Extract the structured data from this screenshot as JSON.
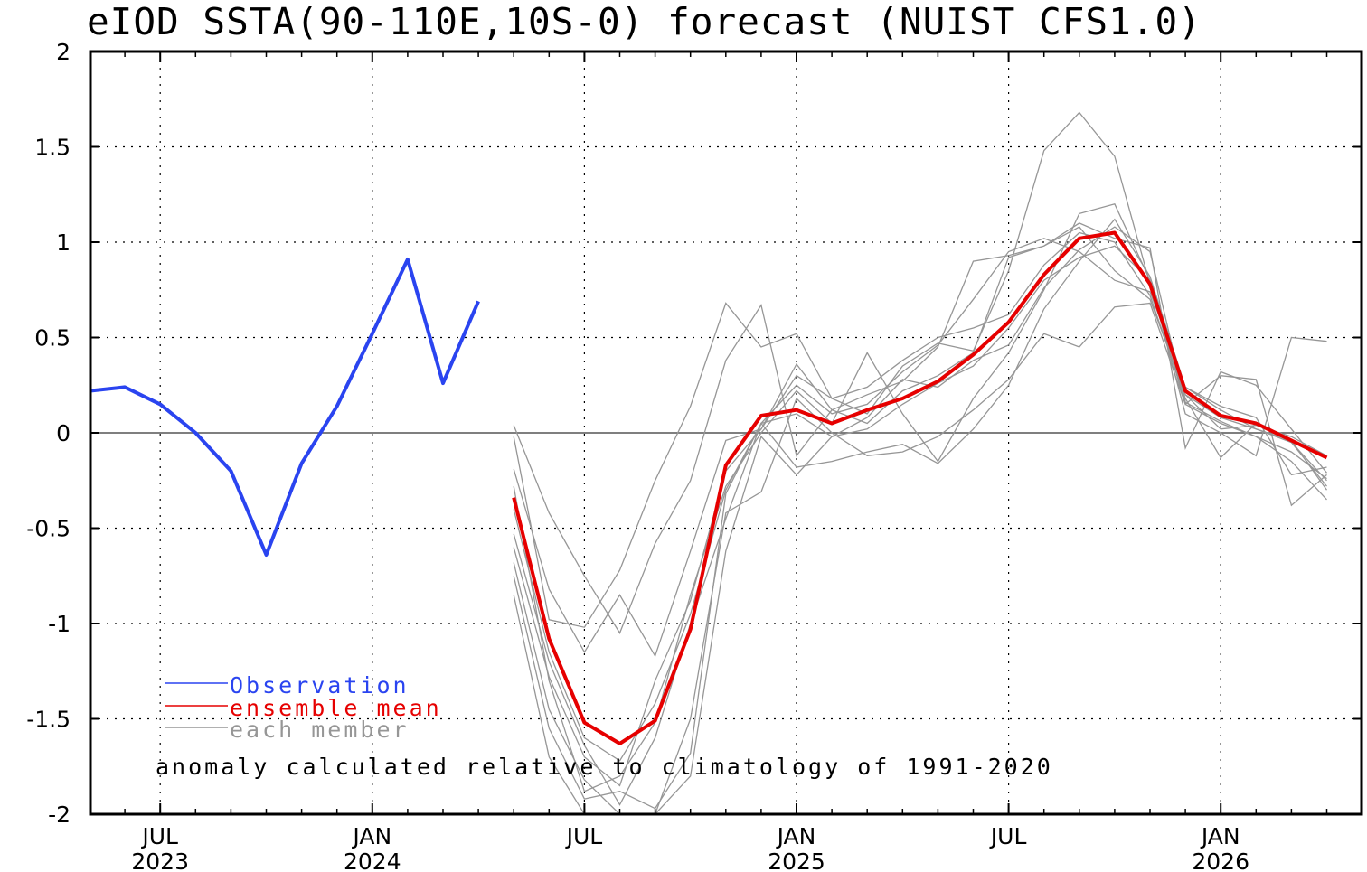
{
  "chart_data": {
    "type": "line",
    "title": "eIOD SSTA(90-110E,10S-0) forecast (NUIST CFS1.0)",
    "note": "anomaly calculated relative to climatology of 1991-2020",
    "ylim": [
      -2,
      2
    ],
    "y_ticks": [
      "2",
      "1.5",
      "1",
      "0.5",
      "0",
      "-0.5",
      "-1",
      "-1.5",
      "-2"
    ],
    "x_ticks": [
      {
        "month": "JUL",
        "year": "2023"
      },
      {
        "month": "JAN",
        "year": "2024"
      },
      {
        "month": "JUL",
        "year": ""
      },
      {
        "month": "JAN",
        "year": "2025"
      },
      {
        "month": "JUL",
        "year": ""
      },
      {
        "month": "JAN",
        "year": "2026"
      }
    ],
    "grid": "dotted",
    "legend_placement": "lower-left",
    "series": [
      {
        "name": "Observation",
        "color": "#2a44f0",
        "x": [
          "2023-05",
          "2023-06",
          "2023-07",
          "2023-08",
          "2023-09",
          "2023-10",
          "2023-11",
          "2023-12",
          "2024-01",
          "2024-02",
          "2024-03",
          "2024-04"
        ],
        "values": [
          0.22,
          0.24,
          0.15,
          0.0,
          -0.2,
          -0.64,
          -0.16,
          0.14,
          0.52,
          0.91,
          0.26,
          0.69
        ]
      },
      {
        "name": "ensemble mean",
        "color": "#e60000",
        "x": [
          "2024-05",
          "2024-06",
          "2024-07",
          "2024-08",
          "2024-09",
          "2024-10",
          "2024-11",
          "2024-12",
          "2025-01",
          "2025-02",
          "2025-03",
          "2025-04",
          "2025-05",
          "2025-06",
          "2025-07",
          "2025-08",
          "2025-09",
          "2025-10",
          "2025-11",
          "2025-12",
          "2026-01",
          "2026-02",
          "2026-03",
          "2026-04"
        ],
        "values": [
          -0.34,
          -1.08,
          -1.52,
          -1.63,
          -1.51,
          -1.03,
          -0.17,
          0.09,
          0.12,
          0.05,
          0.12,
          0.18,
          0.27,
          0.41,
          0.58,
          0.83,
          1.02,
          1.05,
          0.78,
          0.22,
          0.09,
          0.05,
          -0.04,
          -0.13
        ]
      }
    ],
    "members": {
      "name": "each member",
      "color": "#969696",
      "x": [
        "2024-05",
        "2024-06",
        "2024-07",
        "2024-08",
        "2024-09",
        "2024-10",
        "2024-11",
        "2024-12",
        "2025-01",
        "2025-02",
        "2025-03",
        "2025-04",
        "2025-05",
        "2025-06",
        "2025-07",
        "2025-08",
        "2025-09",
        "2025-10",
        "2025-11",
        "2025-12",
        "2026-01",
        "2026-02",
        "2026-03",
        "2026-04"
      ],
      "values": [
        [
          0.04,
          -0.42,
          -0.75,
          -1.05,
          -0.58,
          -0.25,
          0.38,
          0.67,
          -0.12,
          0.12,
          0.05,
          0.22,
          0.3,
          0.42,
          0.92,
          0.98,
          1.08,
          0.85,
          0.7,
          0.2,
          0.08,
          0.02,
          -0.05,
          -0.25
        ],
        [
          -0.02,
          -0.98,
          -1.02,
          -0.72,
          -0.25,
          0.14,
          0.68,
          0.45,
          0.52,
          0.18,
          0.1,
          0.35,
          0.47,
          0.43,
          0.85,
          1.48,
          1.68,
          1.45,
          0.78,
          0.15,
          0.3,
          0.28,
          -0.38,
          -0.22
        ],
        [
          -0.19,
          -0.82,
          -1.15,
          -0.85,
          -1.17,
          -0.62,
          -0.04,
          0.02,
          0.36,
          0.12,
          0.2,
          0.27,
          0.45,
          0.9,
          0.93,
          0.98,
          1.1,
          1.02,
          0.97,
          -0.08,
          0.32,
          0.25,
          0.02,
          -0.21
        ],
        [
          -0.28,
          -1.3,
          -1.88,
          -1.8,
          -1.52,
          -0.85,
          -0.28,
          0.0,
          0.22,
          0.05,
          0.42,
          0.1,
          -0.15,
          0.18,
          0.42,
          0.75,
          1.15,
          1.2,
          0.8,
          0.1,
          0.0,
          -0.12,
          0.5,
          0.48
        ],
        [
          -0.53,
          -1.2,
          -1.64,
          -1.95,
          -1.6,
          -1.0,
          -0.45,
          0.05,
          0.25,
          0.1,
          0.15,
          0.32,
          0.46,
          0.7,
          0.95,
          1.02,
          0.95,
          0.8,
          0.74,
          0.24,
          0.12,
          0.02,
          -0.04,
          -0.3
        ],
        [
          -0.68,
          -1.45,
          -1.82,
          -2.0,
          -2.0,
          -1.5,
          -0.42,
          -0.31,
          0.18,
          0.0,
          -0.12,
          -0.1,
          -0.02,
          0.12,
          0.28,
          0.52,
          0.45,
          0.66,
          0.68,
          0.15,
          0.05,
          -0.02,
          -0.15,
          -0.35
        ],
        [
          -0.75,
          -1.55,
          -1.92,
          -1.88,
          -1.97,
          -1.68,
          -0.32,
          0.05,
          -0.18,
          -0.15,
          -0.1,
          -0.06,
          -0.16,
          0.02,
          0.25,
          0.65,
          0.9,
          1.12,
          0.82,
          0.24,
          0.14,
          0.08,
          -0.22,
          -0.18
        ],
        [
          -0.85,
          -1.7,
          -2.0,
          -2.0,
          -2.0,
          -1.8,
          -0.62,
          -0.02,
          -0.22,
          -0.02,
          0.08,
          0.28,
          0.24,
          0.38,
          0.46,
          0.76,
          0.96,
          1.08,
          0.95,
          0.16,
          0.06,
          -0.02,
          -0.1,
          -0.24
        ],
        [
          -0.6,
          -1.28,
          -1.7,
          -1.85,
          -1.3,
          -0.88,
          -0.2,
          0.02,
          0.3,
          0.18,
          0.24,
          0.38,
          0.5,
          0.55,
          0.62,
          0.88,
          1.05,
          1.0,
          0.72,
          0.18,
          -0.13,
          0.05,
          -0.05,
          -0.28
        ],
        [
          -0.4,
          -1.15,
          -1.6,
          -1.72,
          -1.42,
          -0.95,
          -0.3,
          0.05,
          0.1,
          -0.02,
          0.02,
          0.15,
          0.26,
          0.35,
          0.55,
          0.8,
          0.92,
          0.98,
          0.8,
          0.2,
          0.02,
          0.04,
          -0.02,
          -0.12
        ]
      ]
    }
  }
}
